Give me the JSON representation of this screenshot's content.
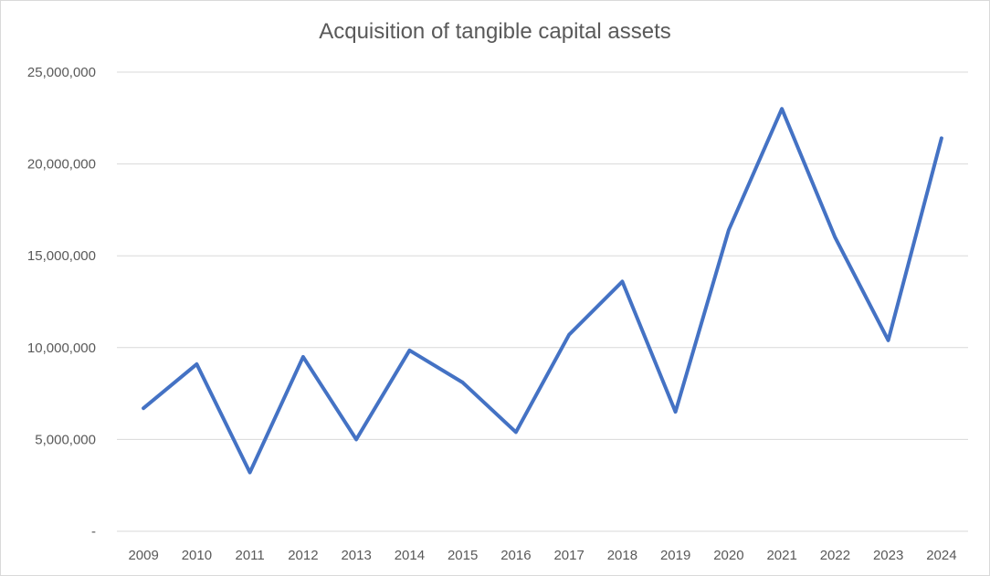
{
  "chart_data": {
    "type": "line",
    "title": "Acquisition of tangible capital assets",
    "xlabel": "",
    "ylabel": "",
    "categories": [
      "2009",
      "2010",
      "2011",
      "2012",
      "2013",
      "2014",
      "2015",
      "2016",
      "2017",
      "2018",
      "2019",
      "2020",
      "2021",
      "2022",
      "2023",
      "2024"
    ],
    "series": [
      {
        "values": [
          6700000,
          9100000,
          3200000,
          9500000,
          5000000,
          9850000,
          8100000,
          5400000,
          10700000,
          13600000,
          6500000,
          16400000,
          23000000,
          16000000,
          10400000,
          21400000
        ],
        "color": "#4472c4"
      }
    ],
    "ylim": [
      0,
      25000000
    ],
    "yticks": [
      0,
      5000000,
      10000000,
      15000000,
      20000000,
      25000000
    ],
    "ytick_labels": [
      "-",
      "5,000,000",
      "10,000,000",
      "15,000,000",
      "20,000,000",
      "25,000,000"
    ],
    "grid": true,
    "legend": "none"
  }
}
